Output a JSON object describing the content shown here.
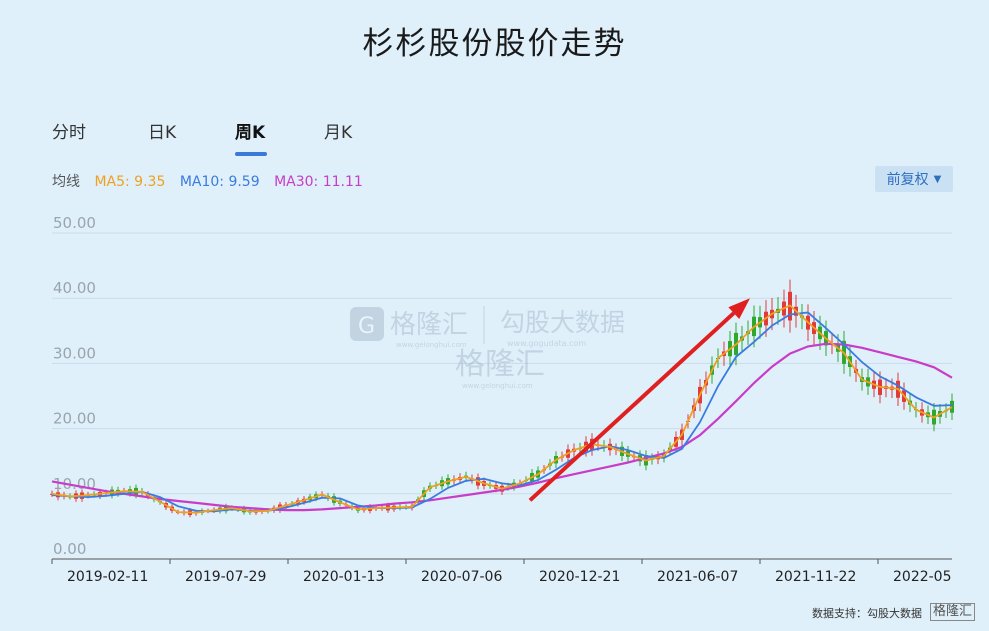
{
  "page": {
    "title": "杉杉股份股价走势",
    "tabs": [
      "分时",
      "日K",
      "周K",
      "月K"
    ],
    "active_tab": "周K",
    "ma_label": "均线",
    "ma": {
      "ma5": "MA5: 9.35",
      "ma10": "MA10: 9.59",
      "ma30": "MA30: 11.11"
    },
    "adjust_label": "前复权",
    "source": "数据支持：勾股大数据",
    "source_logo": "格隆汇",
    "watermark": {
      "brand1": "格隆汇",
      "url1": "www.gelonghui.com",
      "brand2": "勾股大数据",
      "url2": "www.gogudata.com"
    }
  },
  "colors": {
    "ma5": "#f0a020",
    "ma10": "#3a7be0",
    "ma30": "#c83cc8",
    "up": "#e03a3a",
    "down": "#2ea82e",
    "arrow": "#e02020"
  },
  "chart_data": {
    "type": "line",
    "title": "杉杉股份股价走势",
    "ylim": [
      0,
      50
    ],
    "yticks": [
      "0.00",
      "10.00",
      "20.00",
      "30.00",
      "40.00",
      "50.00"
    ],
    "xticks": [
      "2019-02-11",
      "2019-07-29",
      "2020-01-13",
      "2020-07-06",
      "2020-12-21",
      "2021-06-07",
      "2021-11-22",
      "2022-05"
    ],
    "grid": true,
    "arrow": {
      "from": [
        "2020-11-10",
        9
      ],
      "to": [
        "2021-10-04",
        40
      ]
    },
    "series": [
      {
        "name": "MA5",
        "key": "ma5",
        "values": [
          10,
          9.6,
          9.8,
          10.1,
          10.4,
          10.3,
          8.8,
          7.2,
          7.1,
          7.5,
          7.8,
          7.3,
          7.4,
          8.2,
          9.0,
          9.9,
          8.7,
          7.6,
          7.8,
          7.9,
          8.0,
          11.0,
          11.9,
          12.6,
          11.6,
          10.8,
          11.6,
          13.0,
          15.2,
          16.7,
          17.6,
          17.2,
          16.1,
          15.1,
          15.8,
          19.1,
          25.2,
          30.8,
          32.9,
          35.6,
          37.6,
          38.9,
          36.3,
          33.8,
          31.6,
          27.5,
          26.4,
          26.1,
          22.9,
          21.7,
          23.3
        ]
      },
      {
        "name": "MA10",
        "key": "ma10",
        "values": [
          9.8,
          9.6,
          9.5,
          9.7,
          10.0,
          10.3,
          9.5,
          8.1,
          7.4,
          7.3,
          7.6,
          7.4,
          7.4,
          7.9,
          8.6,
          9.4,
          9.3,
          8.2,
          7.8,
          7.8,
          7.9,
          9.2,
          10.9,
          12.0,
          12.3,
          11.6,
          11.3,
          12.1,
          13.7,
          15.5,
          16.7,
          17.3,
          16.7,
          15.8,
          15.5,
          16.9,
          21.0,
          26.5,
          31.0,
          33.3,
          35.8,
          37.5,
          37.8,
          35.4,
          32.9,
          30.2,
          28.0,
          26.6,
          24.8,
          23.5,
          23.6
        ]
      },
      {
        "name": "MA30",
        "key": "ma30",
        "values": [
          11.9,
          11.4,
          10.9,
          10.4,
          10.0,
          9.6,
          9.2,
          8.9,
          8.6,
          8.3,
          8.0,
          7.8,
          7.6,
          7.5,
          7.5,
          7.6,
          7.8,
          8.0,
          8.2,
          8.5,
          8.7,
          9.0,
          9.4,
          9.8,
          10.2,
          10.6,
          11.1,
          11.7,
          12.4,
          13.0,
          13.6,
          14.2,
          14.8,
          15.5,
          16.2,
          17.2,
          19.0,
          21.5,
          24.2,
          27.0,
          29.5,
          31.5,
          32.6,
          33.0,
          32.9,
          32.4,
          31.7,
          31.0,
          30.3,
          29.4,
          27.8
        ]
      }
    ]
  }
}
